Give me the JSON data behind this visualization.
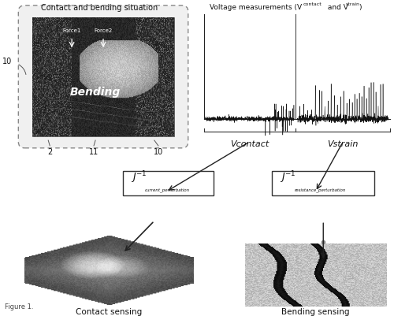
{
  "bg_color": "#ffffff",
  "title_top_left": "Contact and bending situation",
  "title_top_right_main": "Voltage measurements (V",
  "title_top_right_sub1": "contact",
  "title_top_right_mid": " and V",
  "title_top_right_sub2": "strain",
  "title_top_right_end": ")",
  "label_vcontact": "Vcontact",
  "label_vstrain": "Vstrain",
  "label_j_current_main": "J",
  "label_j_current_sub": "current_perturbation",
  "label_j_resistance_main": "J",
  "label_j_resistance_sub": "resistance_perturbation",
  "label_contact_sensing": "Contact sensing",
  "label_bending_sensing": "Bending sensing",
  "fig_label": "Figure 1.",
  "font_color": "#111111"
}
